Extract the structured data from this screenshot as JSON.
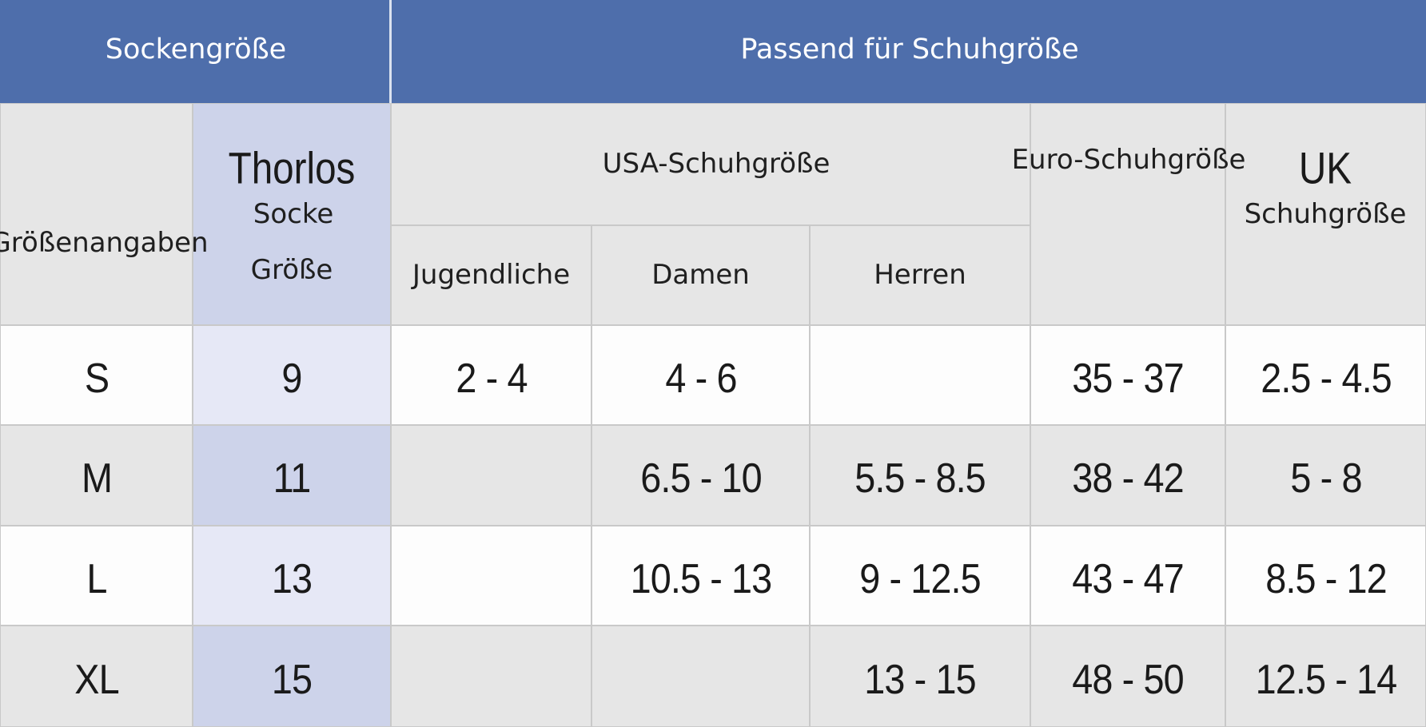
{
  "header": {
    "left": "Sockengröße",
    "right": "Passend für Schuhgröße"
  },
  "subheader": {
    "size_label": "Größenangaben",
    "thorlos": {
      "brand": "Thorlos",
      "line1": "Socke",
      "line2": "Größe"
    },
    "usa": {
      "title": "USA-Schuhgröße",
      "columns": [
        "Jugendliche",
        "Damen",
        "Herren"
      ]
    },
    "euro": "Euro-Schuhgröße",
    "uk": {
      "line1": "UK",
      "line2": "Schuhgröße"
    }
  },
  "table": {
    "rows": [
      [
        "S",
        "9",
        "2 - 4",
        "4 - 6",
        null,
        "35 - 37",
        "2.5 - 4.5"
      ],
      [
        "M",
        "11",
        null,
        "6.5 - 10",
        "5.5 - 8.5",
        "38 - 42",
        "5 - 8"
      ],
      [
        "L",
        "13",
        null,
        "10.5 - 13",
        "9 - 12.5",
        "43 - 47",
        "8.5 - 12"
      ],
      [
        "XL",
        "15",
        null,
        null,
        "13 - 15",
        "48 - 50",
        "12.5 - 14"
      ]
    ]
  }
}
